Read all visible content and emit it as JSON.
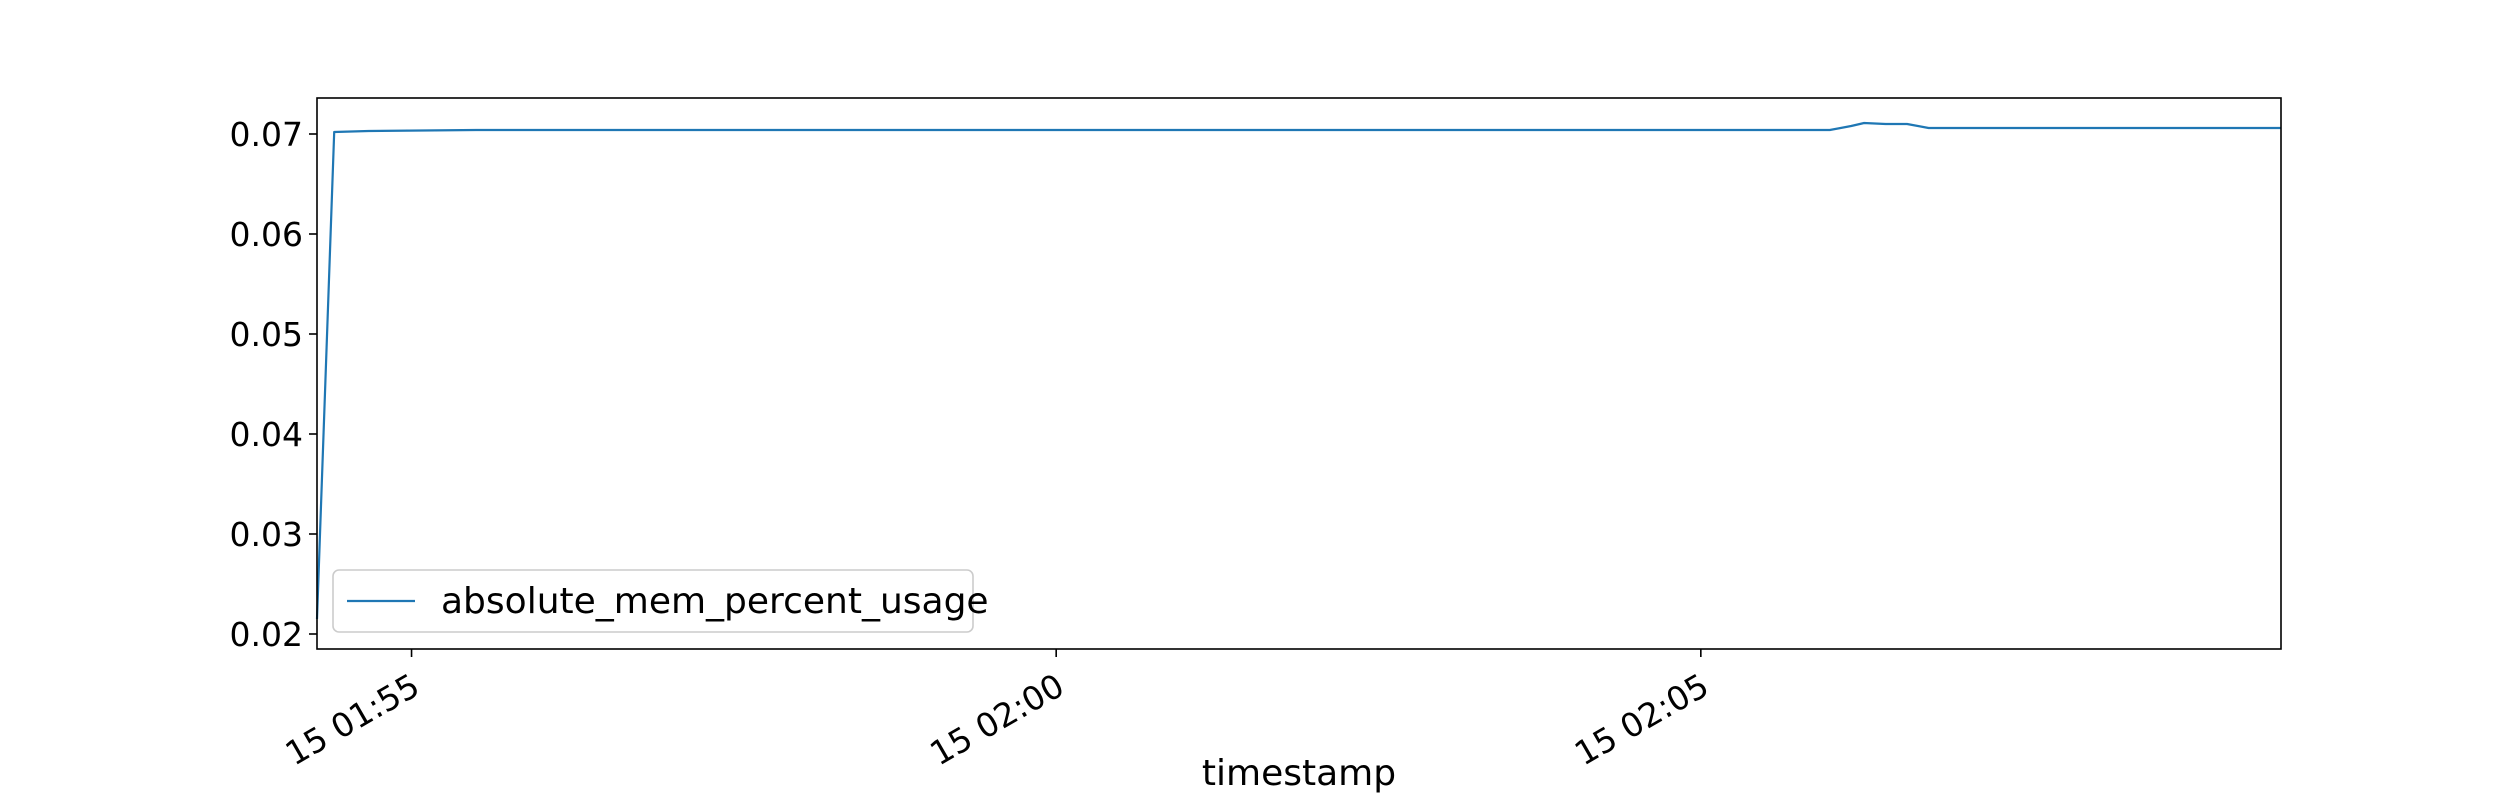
{
  "chart_data": {
    "type": "line",
    "title": "",
    "xlabel": "timestamp",
    "ylabel": "",
    "x_ticks": [
      "15 01:55",
      "15 02:00",
      "15 02:05"
    ],
    "y_ticks": [
      "0.02",
      "0.03",
      "0.04",
      "0.05",
      "0.06",
      "0.07"
    ],
    "ylim": [
      0.0185,
      0.0736
    ],
    "xlim": [
      "2024-01-15 01:54:16",
      "2024-01-15 02:09:30"
    ],
    "grid": false,
    "legend_position": "lower-left",
    "series": [
      {
        "name": "absolute_mem_percent_usage",
        "color": "#1f77b4",
        "points": [
          [
            "2024-01-15 01:54:16",
            0.0215
          ],
          [
            "2024-01-15 01:54:24",
            0.0702
          ],
          [
            "2024-01-15 01:54:40",
            0.0703
          ],
          [
            "2024-01-15 01:55:30",
            0.0704
          ],
          [
            "2024-01-15 01:58:00",
            0.0704
          ],
          [
            "2024-01-15 02:02:00",
            0.0704
          ],
          [
            "2024-01-15 02:06:00",
            0.0704
          ],
          [
            "2024-01-15 02:06:10",
            0.0708
          ],
          [
            "2024-01-15 02:06:16",
            0.0711
          ],
          [
            "2024-01-15 02:06:26",
            0.071
          ],
          [
            "2024-01-15 02:06:36",
            0.071
          ],
          [
            "2024-01-15 02:06:46",
            0.0706
          ],
          [
            "2024-01-15 02:07:30",
            0.0706
          ],
          [
            "2024-01-15 02:09:30",
            0.0706
          ]
        ]
      }
    ]
  }
}
